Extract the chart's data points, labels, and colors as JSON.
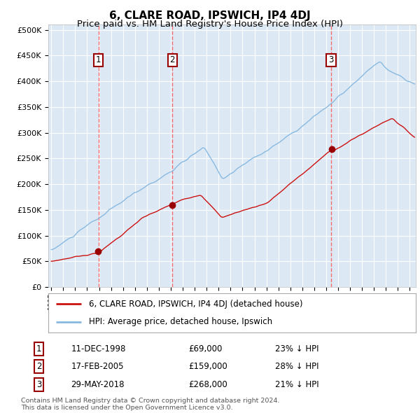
{
  "title": "6, CLARE ROAD, IPSWICH, IP4 4DJ",
  "subtitle": "Price paid vs. HM Land Registry's House Price Index (HPI)",
  "title_fontsize": 11,
  "subtitle_fontsize": 9.5,
  "ylim": [
    0,
    510000
  ],
  "yticks": [
    0,
    50000,
    100000,
    150000,
    200000,
    250000,
    300000,
    350000,
    400000,
    450000,
    500000
  ],
  "ytick_labels": [
    "£0",
    "£50K",
    "£100K",
    "£150K",
    "£200K",
    "£250K",
    "£300K",
    "£350K",
    "£400K",
    "£450K",
    "£500K"
  ],
  "background_color": "#ffffff",
  "plot_bg_color": "#dce9f5",
  "grid_color": "#ffffff",
  "hpi_line_color": "#8ab9e0",
  "price_line_color": "#cc1111",
  "sale_marker_color": "#990000",
  "vline_color": "#ff5555",
  "sale_points": [
    {
      "label": "1",
      "date_num": 1998.94,
      "price": 69000,
      "display_date": "11-DEC-1998",
      "display_price": "£69,000",
      "display_pct": "23% ↓ HPI"
    },
    {
      "label": "2",
      "date_num": 2005.13,
      "price": 159000,
      "display_date": "17-FEB-2005",
      "display_price": "£159,000",
      "display_pct": "28% ↓ HPI"
    },
    {
      "label": "3",
      "date_num": 2018.41,
      "price": 268000,
      "display_date": "29-MAY-2018",
      "display_price": "£268,000",
      "display_pct": "21% ↓ HPI"
    }
  ],
  "footer_text": "Contains HM Land Registry data © Crown copyright and database right 2024.\nThis data is licensed under the Open Government Licence v3.0.",
  "legend_entries": [
    "6, CLARE ROAD, IPSWICH, IP4 4DJ (detached house)",
    "HPI: Average price, detached house, Ipswich"
  ]
}
